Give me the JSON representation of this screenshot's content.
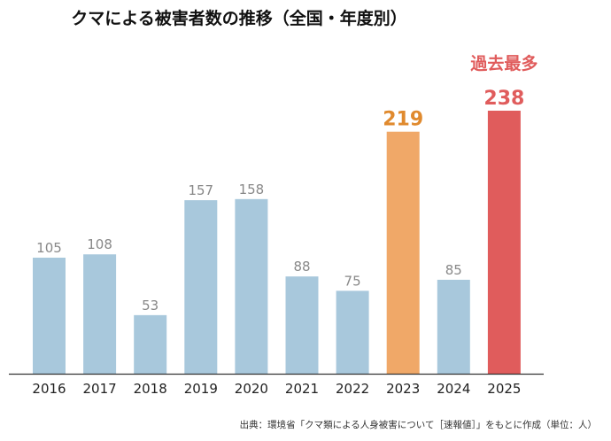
{
  "chart_data": {
    "type": "bar",
    "title": "クマによる被害者数の推移（全国・年度別）",
    "categories": [
      "2016",
      "2017",
      "2018",
      "2019",
      "2020",
      "2021",
      "2022",
      "2023",
      "2024",
      "2025"
    ],
    "values": [
      105,
      108,
      53,
      157,
      158,
      88,
      75,
      219,
      85,
      238
    ],
    "ylim": [
      0,
      260
    ],
    "grid": false,
    "bar_colors": [
      "#a8c8dc",
      "#a8c8dc",
      "#a8c8dc",
      "#a8c8dc",
      "#a8c8dc",
      "#a8c8dc",
      "#a8c8dc",
      "#f0a868",
      "#a8c8dc",
      "#e05c5c"
    ],
    "label_colors": [
      "#888888",
      "#888888",
      "#888888",
      "#888888",
      "#888888",
      "#888888",
      "#888888",
      "#e08a2e",
      "#888888",
      "#e05c5c"
    ],
    "highlight": [
      7,
      9
    ],
    "annotation": {
      "text": "過去最多",
      "category": "2025",
      "color": "#e05c5c"
    },
    "source": "出典：環境省「クマ類による人身被害について［速報値］」をもとに作成（単位：人）"
  }
}
